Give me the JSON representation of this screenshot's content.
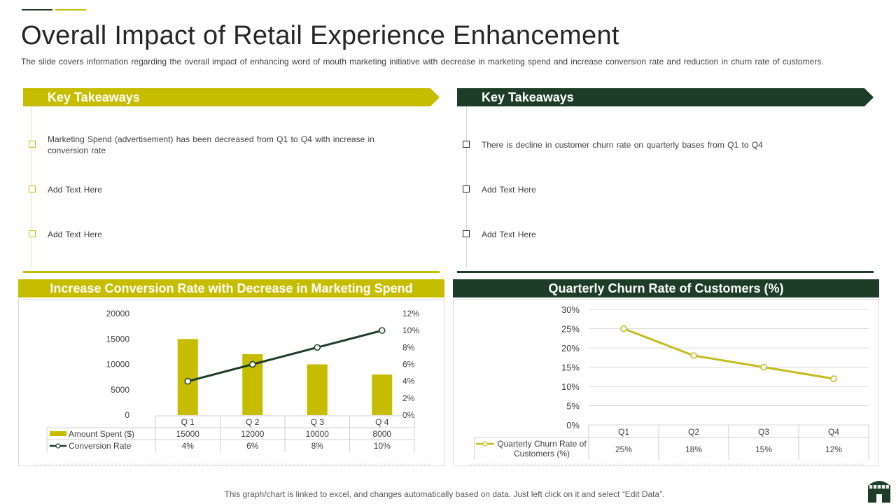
{
  "header": {
    "title": "Overall Impact of Retail Experience Enhancement",
    "subtitle": "The slide covers information regarding the overall impact of enhancing word of mouth marketing initiative with decrease in marketing spend and increase conversion rate and reduction in churn rate of customers."
  },
  "takeaways_left": {
    "title": "Key Takeaways",
    "items": [
      "Marketing Spend (advertisement) has been decreased from Q1 to Q4 with increase in conversion rate",
      "Add Text Here",
      "Add Text Here"
    ]
  },
  "takeaways_right": {
    "title": "Key Takeaways",
    "items": [
      "There is decline in customer churn rate on quarterly bases from Q1 to Q4",
      "Add Text Here",
      "Add Text Here"
    ]
  },
  "colors": {
    "olive": "#c6bd00",
    "dark_green": "#1d3d28",
    "line_churn": "#c4bb1c"
  },
  "chart_data": [
    {
      "type": "bar",
      "title": "Increase Conversion Rate with Decrease in Marketing Spend",
      "categories": [
        "Q 1",
        "Q 2",
        "Q 3",
        "Q 4"
      ],
      "series": [
        {
          "name": "Amount Spent ($)",
          "kind": "bar",
          "axis": "left",
          "values": [
            15000,
            12000,
            10000,
            8000
          ],
          "labels": [
            "15000",
            "12000",
            "10000",
            "8000"
          ]
        },
        {
          "name": "Conversion Rate",
          "kind": "line",
          "axis": "right",
          "values": [
            4,
            6,
            8,
            10
          ],
          "labels": [
            "4%",
            "6%",
            "8%",
            "10%"
          ]
        }
      ],
      "ylim_left": [
        0,
        20000
      ],
      "yticks_left": [
        "0",
        "5000",
        "10000",
        "15000",
        "20000"
      ],
      "ylim_right": [
        0,
        12
      ],
      "yticks_right": [
        "0%",
        "2%",
        "4%",
        "6%",
        "8%",
        "10%",
        "12%"
      ],
      "data_table": true
    },
    {
      "type": "line",
      "title": "Quarterly Churn Rate of Customers (%)",
      "categories": [
        "Q1",
        "Q2",
        "Q3",
        "Q4"
      ],
      "series": [
        {
          "name_line1": "Quarterly Churn Rate of",
          "name_line2": "Customers (%)",
          "values": [
            25,
            18,
            15,
            12
          ],
          "labels": [
            "25%",
            "18%",
            "15%",
            "12%"
          ]
        }
      ],
      "ylim": [
        0,
        30
      ],
      "yticks": [
        "0%",
        "5%",
        "10%",
        "15%",
        "20%",
        "25%",
        "30%"
      ],
      "data_table": true
    }
  ],
  "footer": {
    "note": "This graph/chart is linked to excel, and changes automatically based on data. Just left click on it and select “Edit Data”."
  }
}
